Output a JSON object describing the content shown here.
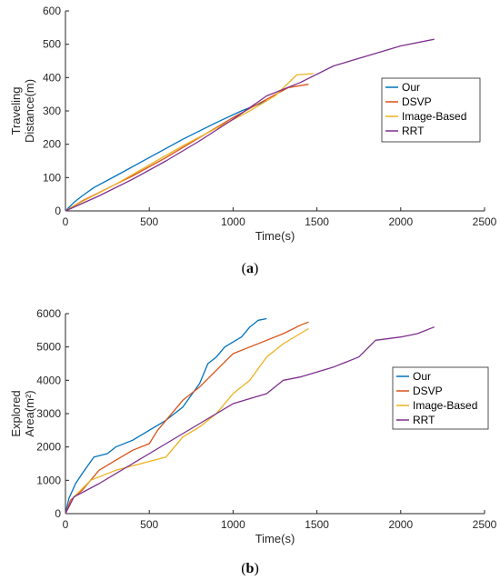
{
  "chart_data": [
    {
      "type": "line",
      "caption_letter": "a",
      "xlabel": "Time(s)",
      "ylabel_lines": [
        "Traveling",
        "Distance(m)"
      ],
      "xlim": [
        0,
        2500
      ],
      "ylim": [
        0,
        600
      ],
      "xticks": [
        "0",
        "500",
        "1000",
        "1500",
        "2000",
        "2500"
      ],
      "yticks": [
        "0",
        "100",
        "200",
        "300",
        "400",
        "500",
        "600"
      ],
      "legend_position": "center-right",
      "series": [
        {
          "name": "Our",
          "color": "#0072BD",
          "x": [
            0,
            50,
            100,
            170,
            300,
            500,
            700,
            900,
            1050,
            1200
          ],
          "y": [
            0,
            25,
            45,
            70,
            105,
            160,
            215,
            265,
            300,
            330
          ]
        },
        {
          "name": "DSVP",
          "color": "#D95319",
          "x": [
            0,
            100,
            200,
            400,
            600,
            800,
            1000,
            1200,
            1330,
            1450
          ],
          "y": [
            0,
            30,
            55,
            105,
            160,
            220,
            280,
            335,
            370,
            380
          ]
        },
        {
          "name": "Image-Based",
          "color": "#EDB120",
          "x": [
            0,
            100,
            300,
            500,
            700,
            900,
            1100,
            1250,
            1380,
            1480
          ],
          "y": [
            0,
            28,
            80,
            138,
            195,
            248,
            300,
            345,
            408,
            412
          ]
        },
        {
          "name": "RRT",
          "color": "#7E2F8E",
          "x": [
            0,
            200,
            400,
            600,
            800,
            1000,
            1200,
            1400,
            1600,
            1800,
            2000,
            2200
          ],
          "y": [
            0,
            45,
            95,
            150,
            210,
            275,
            345,
            385,
            435,
            465,
            495,
            515
          ]
        }
      ]
    },
    {
      "type": "line",
      "caption_letter": "b",
      "xlabel": "Time(s)",
      "ylabel_lines": [
        "Explored",
        "Area(m²)"
      ],
      "xlim": [
        0,
        2500
      ],
      "ylim": [
        0,
        6000
      ],
      "xticks": [
        "0",
        "500",
        "1000",
        "1500",
        "2000",
        "2500"
      ],
      "yticks": [
        "0",
        "1000",
        "2000",
        "3000",
        "4000",
        "5000",
        "6000"
      ],
      "legend_position": "center-right",
      "series": [
        {
          "name": "Our",
          "color": "#0072BD",
          "x": [
            0,
            20,
            60,
            100,
            170,
            250,
            300,
            400,
            500,
            600,
            700,
            800,
            850,
            900,
            950,
            1050,
            1100,
            1150,
            1200
          ],
          "y": [
            0,
            450,
            900,
            1200,
            1700,
            1800,
            2000,
            2200,
            2500,
            2800,
            3200,
            3900,
            4500,
            4700,
            5000,
            5300,
            5600,
            5800,
            5850
          ]
        },
        {
          "name": "DSVP",
          "color": "#D95319",
          "x": [
            0,
            30,
            100,
            200,
            300,
            400,
            500,
            550,
            600,
            650,
            700,
            800,
            900,
            1000,
            1100,
            1200,
            1300,
            1400,
            1450
          ],
          "y": [
            0,
            400,
            700,
            1300,
            1600,
            1900,
            2100,
            2500,
            2800,
            3100,
            3400,
            3800,
            4300,
            4800,
            5000,
            5200,
            5400,
            5650,
            5750
          ]
        },
        {
          "name": "Image-Based",
          "color": "#EDB120",
          "x": [
            0,
            50,
            150,
            300,
            450,
            600,
            650,
            700,
            800,
            900,
            1000,
            1100,
            1200,
            1300,
            1400,
            1450
          ],
          "y": [
            0,
            500,
            1000,
            1300,
            1500,
            1700,
            2000,
            2300,
            2600,
            3000,
            3600,
            4000,
            4700,
            5100,
            5400,
            5550
          ]
        },
        {
          "name": "RRT",
          "color": "#7E2F8E",
          "x": [
            0,
            50,
            200,
            400,
            600,
            800,
            1000,
            1200,
            1300,
            1400,
            1600,
            1750,
            1850,
            2000,
            2100,
            2200
          ],
          "y": [
            0,
            500,
            900,
            1500,
            2100,
            2700,
            3300,
            3600,
            4000,
            4100,
            4400,
            4700,
            5200,
            5300,
            5400,
            5600
          ]
        }
      ]
    }
  ]
}
